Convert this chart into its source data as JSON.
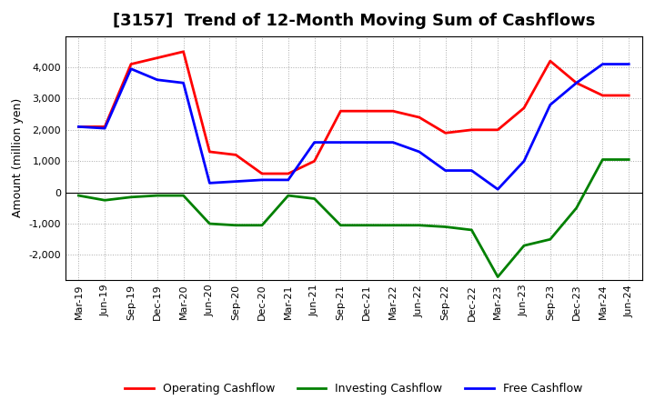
{
  "title": "[3157]  Trend of 12-Month Moving Sum of Cashflows",
  "ylabel": "Amount (million yen)",
  "background_color": "#ffffff",
  "grid_color": "#aaaaaa",
  "x_labels": [
    "Mar-19",
    "Jun-19",
    "Sep-19",
    "Dec-19",
    "Mar-20",
    "Jun-20",
    "Sep-20",
    "Dec-20",
    "Mar-21",
    "Jun-21",
    "Sep-21",
    "Dec-21",
    "Mar-22",
    "Jun-22",
    "Sep-22",
    "Dec-22",
    "Mar-23",
    "Jun-23",
    "Sep-23",
    "Dec-23",
    "Mar-24",
    "Jun-24"
  ],
  "operating_cashflow": [
    2100,
    2100,
    4100,
    4300,
    4500,
    1300,
    1200,
    600,
    600,
    1000,
    2600,
    2600,
    2600,
    2400,
    1900,
    2000,
    2000,
    2700,
    4200,
    3500,
    3100,
    3100
  ],
  "investing_cashflow": [
    -100,
    -250,
    -150,
    -100,
    -100,
    -1000,
    -1050,
    -1050,
    -100,
    -200,
    -1050,
    -1050,
    -1050,
    -1050,
    -1100,
    -1200,
    -2700,
    -1700,
    -1500,
    -500,
    1050,
    1050
  ],
  "free_cashflow": [
    2100,
    2050,
    3950,
    3600,
    3500,
    300,
    350,
    400,
    400,
    1600,
    1600,
    1600,
    1600,
    1300,
    700,
    700,
    100,
    1000,
    2800,
    3500,
    4100,
    4100
  ],
  "operating_color": "#ff0000",
  "investing_color": "#008000",
  "free_color": "#0000ff",
  "line_width": 2.0,
  "ylim": [
    -2800,
    5000
  ],
  "yticks": [
    -2000,
    -1000,
    0,
    1000,
    2000,
    3000,
    4000
  ],
  "title_fontsize": 13,
  "axis_fontsize": 9,
  "tick_fontsize": 8,
  "legend_fontsize": 9
}
